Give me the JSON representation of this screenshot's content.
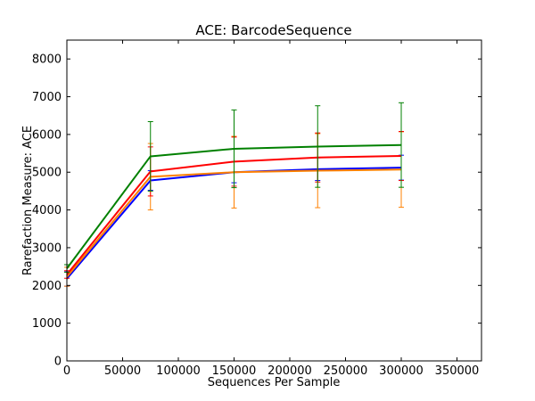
{
  "chart_data": {
    "type": "line",
    "title": "ACE: BarcodeSequence",
    "xlabel": "Sequences Per Sample",
    "ylabel": "Rarefaction Measure: ACE",
    "xlim": [
      0,
      372000
    ],
    "ylim": [
      0,
      8500
    ],
    "x_ticks": [
      0,
      50000,
      100000,
      150000,
      200000,
      250000,
      300000,
      350000
    ],
    "y_ticks": [
      0,
      1000,
      2000,
      3000,
      4000,
      5000,
      6000,
      7000,
      8000
    ],
    "grid": false,
    "legend": "none",
    "series": [
      {
        "color": "#0000ff",
        "x": [
          10,
          75000,
          150000,
          225000,
          300000
        ],
        "y": [
          2180,
          4780,
          5000,
          5080,
          5120
        ],
        "err": [
          200,
          260,
          280,
          300,
          330
        ]
      },
      {
        "color": "#ff8000",
        "x": [
          10,
          75000,
          150000,
          225000,
          300000
        ],
        "y": [
          2230,
          4880,
          5000,
          5040,
          5070
        ],
        "err": [
          250,
          880,
          950,
          980,
          1000
        ]
      },
      {
        "color": "#ff0000",
        "x": [
          10,
          75000,
          150000,
          225000,
          300000
        ],
        "y": [
          2290,
          5020,
          5280,
          5390,
          5430
        ],
        "err": [
          100,
          650,
          650,
          650,
          650
        ]
      },
      {
        "color": "#008000",
        "x": [
          10,
          75000,
          150000,
          225000,
          300000
        ],
        "y": [
          2450,
          5420,
          5620,
          5680,
          5720
        ],
        "err": [
          100,
          920,
          1030,
          1080,
          1120
        ]
      }
    ]
  }
}
